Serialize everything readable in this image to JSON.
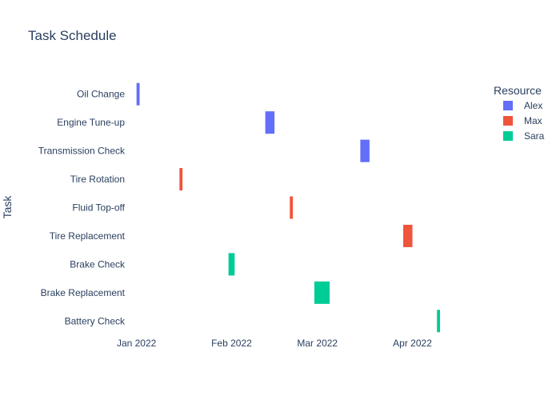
{
  "chart_data": {
    "type": "bar",
    "orientation": "horizontal-timeline",
    "title": "Task Schedule",
    "ylabel": "Task",
    "xlabel": "",
    "x_range": [
      "2021-12-30",
      "2022-04-22"
    ],
    "x_ticks": [
      {
        "date": "2022-01-01",
        "label": "Jan 2022"
      },
      {
        "date": "2022-02-01",
        "label": "Feb 2022"
      },
      {
        "date": "2022-03-01",
        "label": "Mar 2022"
      },
      {
        "date": "2022-04-01",
        "label": "Apr 2022"
      }
    ],
    "categories": [
      "Oil Change",
      "Engine Tune-up",
      "Transmission Check",
      "Tire Rotation",
      "Fluid Top-off",
      "Tire Replacement",
      "Brake Check",
      "Brake Replacement",
      "Battery Check"
    ],
    "legend": {
      "title": "Resource",
      "position": "top-right",
      "items": [
        {
          "name": "Alex",
          "color": "#636efa"
        },
        {
          "name": "Max",
          "color": "#ef553b"
        },
        {
          "name": "Sara",
          "color": "#00cc96"
        }
      ]
    },
    "series": [
      {
        "name": "Alex",
        "color": "#636efa",
        "tasks": [
          {
            "task": "Oil Change",
            "start": "2022-01-01",
            "finish": "2022-01-02"
          },
          {
            "task": "Engine Tune-up",
            "start": "2022-02-12",
            "finish": "2022-02-15"
          },
          {
            "task": "Transmission Check",
            "start": "2022-03-15",
            "finish": "2022-03-18"
          }
        ]
      },
      {
        "name": "Max",
        "color": "#ef553b",
        "tasks": [
          {
            "task": "Tire Rotation",
            "start": "2022-01-15",
            "finish": "2022-01-16"
          },
          {
            "task": "Fluid Top-off",
            "start": "2022-02-20",
            "finish": "2022-02-21"
          },
          {
            "task": "Tire Replacement",
            "start": "2022-03-29",
            "finish": "2022-04-01"
          }
        ]
      },
      {
        "name": "Sara",
        "color": "#00cc96",
        "tasks": [
          {
            "task": "Brake Check",
            "start": "2022-01-31",
            "finish": "2022-02-02"
          },
          {
            "task": "Brake Replacement",
            "start": "2022-02-28",
            "finish": "2022-03-05"
          },
          {
            "task": "Battery Check",
            "start": "2022-04-09",
            "finish": "2022-04-10"
          }
        ]
      }
    ],
    "grid": false
  }
}
